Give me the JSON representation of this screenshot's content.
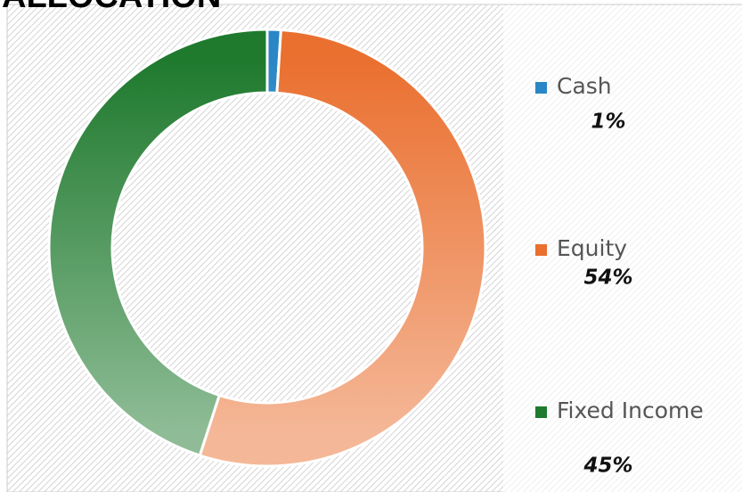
{
  "chart_data": {
    "type": "donut",
    "title": "ALLOCATION",
    "categories": [
      "Cash",
      "Equity",
      "Fixed Income"
    ],
    "values": [
      1,
      54,
      45
    ],
    "value_labels": [
      "1%",
      "54%",
      "45%"
    ],
    "colors": [
      "#2a86c4",
      "#ea7030",
      "#1f7a2e"
    ]
  }
}
